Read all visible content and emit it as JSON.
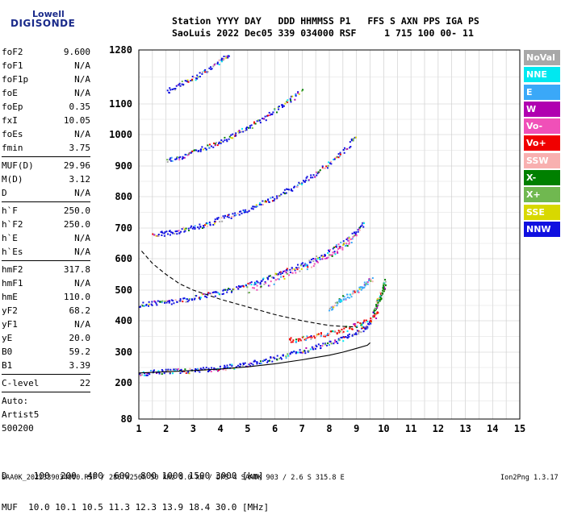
{
  "logo": {
    "line1": "Lowell",
    "line2": "DIGISONDE"
  },
  "header": {
    "line1": "Station YYYY DAY   DDD HHMMSS P1   FFS S AXN PPS IGA PS",
    "line2": "SaoLuis 2022 Dec05 339 034000 RSF     1 715 100 00- 11"
  },
  "params": {
    "group1": [
      {
        "key": "foF2",
        "value": "9.600"
      },
      {
        "key": "foF1",
        "value": "N/A"
      },
      {
        "key": "foF1p",
        "value": "N/A"
      },
      {
        "key": "foE",
        "value": "N/A"
      },
      {
        "key": "foEp",
        "value": "0.35"
      },
      {
        "key": "fxI",
        "value": "10.05"
      },
      {
        "key": "foEs",
        "value": "N/A"
      },
      {
        "key": "fmin",
        "value": "3.75"
      }
    ],
    "group2": [
      {
        "key": "MUF(D)",
        "value": "29.96"
      },
      {
        "key": "M(D)",
        "value": "3.12"
      },
      {
        "key": "D",
        "value": "N/A"
      }
    ],
    "group3": [
      {
        "key": "h`F",
        "value": "250.0"
      },
      {
        "key": "h`F2",
        "value": "250.0"
      },
      {
        "key": "h`E",
        "value": "N/A"
      },
      {
        "key": "h`Es",
        "value": "N/A"
      }
    ],
    "group4": [
      {
        "key": "hmF2",
        "value": "317.8"
      },
      {
        "key": "hmF1",
        "value": "N/A"
      },
      {
        "key": "hmE",
        "value": "110.0"
      },
      {
        "key": "yF2",
        "value": "68.2"
      },
      {
        "key": "yF1",
        "value": "N/A"
      },
      {
        "key": "yE",
        "value": "20.0"
      },
      {
        "key": "B0",
        "value": "59.2"
      },
      {
        "key": "B1",
        "value": "3.39"
      }
    ],
    "group5": [
      {
        "key": "C-level",
        "value": "22"
      }
    ],
    "extra": [
      "Auto:",
      "Artist5",
      "500200"
    ]
  },
  "legend": [
    {
      "label": "NoVal",
      "color": "#a8a8a8"
    },
    {
      "label": "NNE",
      "color": "#00e8f0"
    },
    {
      "label": "E",
      "color": "#3aa8f8"
    },
    {
      "label": "W",
      "color": "#b000b0"
    },
    {
      "label": "Vo-",
      "color": "#f050b8"
    },
    {
      "label": "Vo+",
      "color": "#f00000"
    },
    {
      "label": "SSW",
      "color": "#f8b0b0"
    },
    {
      "label": "X-",
      "color": "#008000"
    },
    {
      "label": "X+",
      "color": "#70b850"
    },
    {
      "label": "SSE",
      "color": "#d8d800"
    },
    {
      "label": "NNW",
      "color": "#1010e0"
    }
  ],
  "footer": {
    "d_line": "D     100  200  400  600  800 1000 1500 3000 [km]",
    "muf_line": "MUF  10.0 10.1 10.5 11.3 12.3 13.9 18.4 30.0 [MHz]",
    "file_line": "SAA0K_2022339034000.RSF / 280fx256h 50 kHz 5.0 km / DPS-4 SAA0K 903 / 2.6 S 315.8 E",
    "version": "Ion2Png 1.3.17"
  },
  "chart_data": {
    "type": "scatter",
    "title": "",
    "xlabel": "",
    "ylabel": "",
    "xlim": [
      1,
      15
    ],
    "ylim": [
      80,
      1280
    ],
    "x_ticks": [
      1,
      2,
      3,
      4,
      5,
      6,
      7,
      8,
      9,
      10,
      11,
      12,
      13,
      14,
      15
    ],
    "y_ticks": [
      80,
      200,
      300,
      400,
      500,
      600,
      700,
      800,
      900,
      1000,
      1100,
      1280
    ],
    "grid": true,
    "legend_position": "right",
    "series": [
      {
        "color": "#1010e0",
        "points": [
          [
            1.0,
            232
          ],
          [
            1.5,
            236
          ],
          [
            2.0,
            238
          ],
          [
            2.5,
            240
          ],
          [
            3.0,
            242
          ],
          [
            3.5,
            245
          ],
          [
            4.0,
            250
          ],
          [
            4.5,
            255
          ],
          [
            5.0,
            262
          ],
          [
            5.5,
            272
          ],
          [
            6.0,
            282
          ],
          [
            6.5,
            295
          ],
          [
            7.0,
            305
          ],
          [
            7.5,
            318
          ],
          [
            8.0,
            330
          ],
          [
            8.5,
            345
          ],
          [
            9.0,
            365
          ],
          [
            9.3,
            380
          ],
          [
            9.5,
            400
          ]
        ]
      },
      {
        "color": "#1010e0",
        "points": [
          [
            1.0,
            455
          ],
          [
            1.5,
            458
          ],
          [
            2.0,
            462
          ],
          [
            2.5,
            468
          ],
          [
            3.0,
            476
          ],
          [
            3.5,
            485
          ],
          [
            4.0,
            495
          ],
          [
            4.5,
            505
          ],
          [
            5.0,
            518
          ],
          [
            5.5,
            532
          ],
          [
            6.0,
            548
          ],
          [
            6.5,
            565
          ],
          [
            7.0,
            583
          ],
          [
            7.5,
            602
          ],
          [
            8.0,
            625
          ],
          [
            8.5,
            655
          ],
          [
            9.0,
            690
          ],
          [
            9.3,
            720
          ]
        ]
      },
      {
        "color": "#1010e0",
        "points": [
          [
            1.5,
            680
          ],
          [
            2.0,
            685
          ],
          [
            2.5,
            693
          ],
          [
            3.0,
            703
          ],
          [
            3.5,
            715
          ],
          [
            4.0,
            730
          ],
          [
            4.5,
            745
          ],
          [
            5.0,
            762
          ],
          [
            5.5,
            780
          ],
          [
            6.0,
            800
          ],
          [
            6.5,
            825
          ],
          [
            7.0,
            850
          ],
          [
            7.5,
            878
          ],
          [
            8.0,
            910
          ],
          [
            8.5,
            950
          ],
          [
            9.0,
            1000
          ]
        ]
      },
      {
        "color": "#1010e0",
        "points": [
          [
            2.0,
            918
          ],
          [
            2.5,
            930
          ],
          [
            3.0,
            945
          ],
          [
            3.5,
            962
          ],
          [
            4.0,
            980
          ],
          [
            4.5,
            1002
          ],
          [
            5.0,
            1025
          ],
          [
            5.5,
            1050
          ],
          [
            6.0,
            1080
          ],
          [
            6.5,
            1112
          ],
          [
            7.0,
            1148
          ]
        ]
      },
      {
        "color": "#1010e0",
        "points": [
          [
            2.0,
            1145
          ],
          [
            2.5,
            1165
          ],
          [
            3.0,
            1188
          ],
          [
            3.5,
            1215
          ],
          [
            4.0,
            1245
          ],
          [
            4.3,
            1270
          ]
        ]
      },
      {
        "color": "#f00000",
        "points": [
          [
            6.5,
            340
          ],
          [
            7.0,
            345
          ],
          [
            7.5,
            352
          ],
          [
            8.0,
            362
          ],
          [
            8.5,
            372
          ],
          [
            9.0,
            390
          ],
          [
            9.5,
            405
          ],
          [
            9.8,
            430
          ]
        ]
      },
      {
        "color": "#008000",
        "points": [
          [
            9.6,
            430
          ],
          [
            9.7,
            450
          ],
          [
            9.8,
            470
          ],
          [
            9.9,
            490
          ],
          [
            10.0,
            505
          ],
          [
            10.0,
            530
          ]
        ]
      },
      {
        "color": "#3aa8f8",
        "points": [
          [
            8.0,
            440
          ],
          [
            8.3,
            465
          ],
          [
            8.6,
            480
          ],
          [
            9.0,
            500
          ],
          [
            9.3,
            520
          ],
          [
            9.6,
            540
          ]
        ]
      },
      {
        "color": "#f050b8",
        "points": [
          [
            5.0,
            500
          ],
          [
            6.0,
            530
          ],
          [
            7.0,
            570
          ],
          [
            8.0,
            610
          ],
          [
            8.5,
            640
          ],
          [
            9.0,
            680
          ]
        ]
      }
    ],
    "curves": [
      {
        "style": "dashed",
        "points": [
          [
            1.1,
            625
          ],
          [
            1.5,
            585
          ],
          [
            2.0,
            550
          ],
          [
            2.5,
            520
          ],
          [
            3.0,
            500
          ],
          [
            3.5,
            485
          ],
          [
            4.0,
            470
          ],
          [
            5.0,
            445
          ],
          [
            6.0,
            420
          ],
          [
            7.0,
            400
          ],
          [
            7.5,
            392
          ],
          [
            8.0,
            385
          ],
          [
            8.5,
            382
          ],
          [
            9.0,
            380
          ]
        ]
      },
      {
        "style": "solid",
        "points": [
          [
            1.0,
            232
          ],
          [
            2.0,
            236
          ],
          [
            3.0,
            240
          ],
          [
            4.0,
            245
          ],
          [
            5.0,
            252
          ],
          [
            6.0,
            262
          ],
          [
            7.0,
            275
          ],
          [
            8.0,
            290
          ],
          [
            8.5,
            300
          ],
          [
            9.0,
            312
          ],
          [
            9.4,
            322
          ],
          [
            9.5,
            330
          ]
        ]
      }
    ]
  }
}
